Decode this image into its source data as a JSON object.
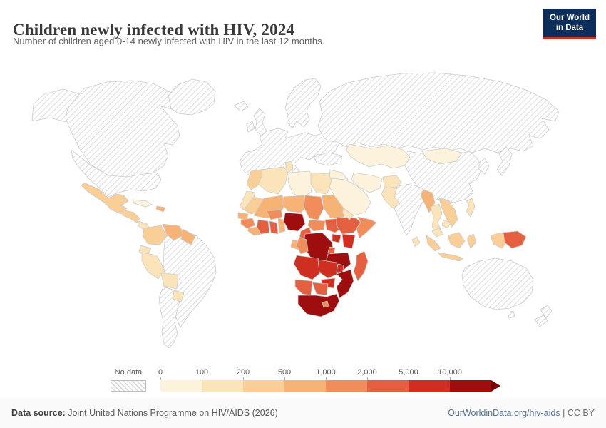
{
  "header": {
    "title": "Children newly infected with HIV, 2024",
    "subtitle": "Number of children aged 0-14 newly infected with HIV in the last 12 months."
  },
  "logo": {
    "line1": "Our World",
    "line2": "in Data",
    "bg": "#0D2E5B",
    "accent": "#D7301F"
  },
  "legend": {
    "no_data_label": "No data",
    "tick_labels": [
      "0",
      "100",
      "200",
      "500",
      "1,000",
      "2,000",
      "5,000",
      "10,000"
    ]
  },
  "footer": {
    "source_label": "Data source:",
    "source_text": " Joint United Nations Programme on HIV/AIDS (2026)",
    "link_text": "OurWorldinData.org/hiv-aids",
    "license_text": " | CC BY"
  },
  "chart_data": {
    "type": "heatmap",
    "subtype": "world-choropleth-map",
    "title": "Children newly infected with HIV, 2024",
    "unit": "children aged 0-14 newly infected with HIV in the last 12 months",
    "legend_position": "bottom",
    "no_data_stroke": "#cccccc",
    "arrow_color": "#7A0404",
    "bins": [
      {
        "range": "0-100",
        "color": "#FDF3DC"
      },
      {
        "range": "100-200",
        "color": "#FBE3BA"
      },
      {
        "range": "200-500",
        "color": "#F9CE97"
      },
      {
        "range": "500-1,000",
        "color": "#F7B275"
      },
      {
        "range": "1,000-2,000",
        "color": "#F18D5B"
      },
      {
        "range": "2,000-5,000",
        "color": "#E55F41"
      },
      {
        "range": "5,000-10,000",
        "color": "#CE2F21"
      },
      {
        "range": "10,000+",
        "color": "#9E0E0E"
      }
    ],
    "regions": [
      {
        "id": "alaska",
        "name": "United States",
        "bin": 0
      },
      {
        "id": "canada",
        "name": "Canada",
        "bin": 0
      },
      {
        "id": "usa",
        "name": "United States",
        "bin": 0
      },
      {
        "id": "greenland",
        "name": "Greenland",
        "bin": 0
      },
      {
        "id": "brazil",
        "name": "Brazil",
        "bin": 0
      },
      {
        "id": "argentina-chile",
        "name": "Argentina / Chile",
        "bin": 0
      },
      {
        "id": "iceland",
        "name": "Iceland",
        "bin": 0
      },
      {
        "id": "ireland",
        "name": "Ireland",
        "bin": 0
      },
      {
        "id": "uk",
        "name": "United Kingdom",
        "bin": 0
      },
      {
        "id": "scandinavia",
        "name": "Scandinavia",
        "bin": 0
      },
      {
        "id": "europe",
        "name": "Europe",
        "bin": 0
      },
      {
        "id": "turkey",
        "name": "Turkey",
        "bin": 0
      },
      {
        "id": "russia",
        "name": "Russia",
        "bin": 0
      },
      {
        "id": "china",
        "name": "China",
        "bin": 0
      },
      {
        "id": "india",
        "name": "India",
        "bin": 0
      },
      {
        "id": "korea",
        "name": "South Korea",
        "bin": 0
      },
      {
        "id": "japan",
        "name": "Japan",
        "bin": 0
      },
      {
        "id": "australia",
        "name": "Australia",
        "bin": 0
      },
      {
        "id": "tasmania",
        "name": "Australia",
        "bin": 0
      },
      {
        "id": "nz-north",
        "name": "New Zealand",
        "bin": 0
      },
      {
        "id": "nz-south",
        "name": "New Zealand",
        "bin": 0
      },
      {
        "id": "mexico",
        "name": "Mexico",
        "bin": 3
      },
      {
        "id": "guatemala-region",
        "name": "Central America",
        "bin": 3
      },
      {
        "id": "costa-panama",
        "name": "Costa Rica / Panama",
        "bin": 2
      },
      {
        "id": "cuba",
        "name": "Cuba",
        "bin": 1
      },
      {
        "id": "hispaniola",
        "name": "Haiti / Dominican Republic",
        "bin": 4
      },
      {
        "id": "colombia",
        "name": "Colombia",
        "bin": 3
      },
      {
        "id": "venezuela",
        "name": "Venezuela",
        "bin": 4
      },
      {
        "id": "guianas",
        "name": "Guyana / Suriname",
        "bin": 4
      },
      {
        "id": "ecuador",
        "name": "Ecuador",
        "bin": 2
      },
      {
        "id": "peru",
        "name": "Peru",
        "bin": 2
      },
      {
        "id": "bolivia",
        "name": "Bolivia",
        "bin": 2
      },
      {
        "id": "paraguay",
        "name": "Paraguay",
        "bin": 2
      },
      {
        "id": "morocco",
        "name": "Morocco",
        "bin": 3
      },
      {
        "id": "western-sahara",
        "name": "Western Sahara",
        "bin": 2
      },
      {
        "id": "algeria",
        "name": "Algeria",
        "bin": 2
      },
      {
        "id": "tunisia",
        "name": "Tunisia",
        "bin": 2
      },
      {
        "id": "libya",
        "name": "Libya",
        "bin": 1
      },
      {
        "id": "egypt",
        "name": "Egypt",
        "bin": 2
      },
      {
        "id": "mauritania",
        "name": "Mauritania",
        "bin": 3
      },
      {
        "id": "mali",
        "name": "Mali",
        "bin": 4
      },
      {
        "id": "senegal",
        "name": "Senegal",
        "bin": 4
      },
      {
        "id": "guinea",
        "name": "Guinea",
        "bin": 5
      },
      {
        "id": "sierra-leone-liberia",
        "name": "Sierra Leone / Liberia",
        "bin": 4
      },
      {
        "id": "cote-divoire",
        "name": "Cote d'Ivoire",
        "bin": 6
      },
      {
        "id": "ghana",
        "name": "Ghana",
        "bin": 6
      },
      {
        "id": "togo-benin",
        "name": "Togo / Benin",
        "bin": 4
      },
      {
        "id": "burkina",
        "name": "Burkina Faso",
        "bin": 5
      },
      {
        "id": "niger",
        "name": "Niger",
        "bin": 4
      },
      {
        "id": "nigeria",
        "name": "Nigeria",
        "bin": 8
      },
      {
        "id": "chad",
        "name": "Chad",
        "bin": 5
      },
      {
        "id": "sudan",
        "name": "Sudan",
        "bin": 4
      },
      {
        "id": "eritrea",
        "name": "Eritrea",
        "bin": 3
      },
      {
        "id": "cameroon",
        "name": "Cameroon",
        "bin": 6
      },
      {
        "id": "car",
        "name": "Central African Republic",
        "bin": 5
      },
      {
        "id": "south-sudan",
        "name": "South Sudan",
        "bin": 6
      },
      {
        "id": "ethiopia",
        "name": "Ethiopia",
        "bin": 6
      },
      {
        "id": "somalia",
        "name": "Somalia",
        "bin": 5
      },
      {
        "id": "uganda",
        "name": "Uganda",
        "bin": 7
      },
      {
        "id": "kenya",
        "name": "Kenya",
        "bin": 7
      },
      {
        "id": "drc",
        "name": "Democratic Republic of Congo",
        "bin": 8
      },
      {
        "id": "gabon",
        "name": "Gabon",
        "bin": 4
      },
      {
        "id": "congo",
        "name": "Congo",
        "bin": 5
      },
      {
        "id": "rwanda-burundi",
        "name": "Rwanda / Burundi",
        "bin": 6
      },
      {
        "id": "tanzania",
        "name": "Tanzania",
        "bin": 8
      },
      {
        "id": "angola",
        "name": "Angola",
        "bin": 7
      },
      {
        "id": "zambia",
        "name": "Zambia",
        "bin": 7
      },
      {
        "id": "malawi",
        "name": "Malawi",
        "bin": 7
      },
      {
        "id": "mozambique",
        "name": "Mozambique",
        "bin": 8
      },
      {
        "id": "zimbabwe",
        "name": "Zimbabwe",
        "bin": 7
      },
      {
        "id": "namibia",
        "name": "Namibia",
        "bin": 6
      },
      {
        "id": "botswana",
        "name": "Botswana",
        "bin": 6
      },
      {
        "id": "south-africa",
        "name": "South Africa",
        "bin": 8
      },
      {
        "id": "lesotho",
        "name": "Lesotho",
        "bin": 5
      },
      {
        "id": "madagascar",
        "name": "Madagascar",
        "bin": 6
      },
      {
        "id": "iraq-syria",
        "name": "Iraq / Syria",
        "bin": 1
      },
      {
        "id": "arabia",
        "name": "Saudi Arabia",
        "bin": 1
      },
      {
        "id": "yemen",
        "name": "Yemen",
        "bin": 2
      },
      {
        "id": "iran",
        "name": "Iran",
        "bin": 1
      },
      {
        "id": "afghanistan",
        "name": "Afghanistan",
        "bin": 2
      },
      {
        "id": "pakistan",
        "name": "Pakistan",
        "bin": 2
      },
      {
        "id": "kazakh",
        "name": "Kazakhstan / Central Asia",
        "bin": 1
      },
      {
        "id": "mongolia",
        "name": "Mongolia",
        "bin": 1
      },
      {
        "id": "sri-lanka",
        "name": "Sri Lanka",
        "bin": 2
      },
      {
        "id": "myanmar",
        "name": "Myanmar",
        "bin": 4
      },
      {
        "id": "thailand",
        "name": "Thailand",
        "bin": 2
      },
      {
        "id": "laos-vietnam",
        "name": "Vietnam / Laos",
        "bin": 3
      },
      {
        "id": "cambodia",
        "name": "Cambodia",
        "bin": 2
      },
      {
        "id": "malaysia",
        "name": "Malaysia",
        "bin": 2
      },
      {
        "id": "philippines",
        "name": "Philippines",
        "bin": 2
      },
      {
        "id": "sumatra",
        "name": "Indonesia",
        "bin": 3
      },
      {
        "id": "java",
        "name": "Indonesia",
        "bin": 3
      },
      {
        "id": "borneo",
        "name": "Indonesia",
        "bin": 3
      },
      {
        "id": "sulawesi",
        "name": "Indonesia",
        "bin": 3
      },
      {
        "id": "west-papua",
        "name": "Indonesia",
        "bin": 3
      },
      {
        "id": "papua-new-guinea",
        "name": "Papua New Guinea",
        "bin": 6
      }
    ]
  }
}
